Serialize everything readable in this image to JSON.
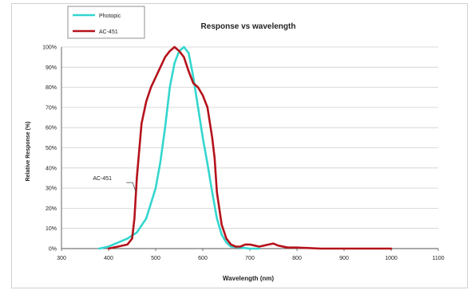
{
  "chart_data": {
    "type": "line",
    "title": "Response vs wavelength",
    "xlabel": "Wavelength (nm)",
    "ylabel": "Relative Response (%)",
    "xlim": [
      300,
      1100
    ],
    "ylim": [
      0,
      100
    ],
    "x_ticks": [
      300,
      400,
      500,
      600,
      700,
      800,
      900,
      1000,
      1100
    ],
    "y_ticks": [
      0,
      10,
      20,
      30,
      40,
      50,
      60,
      70,
      80,
      90,
      100
    ],
    "y_tick_suffix": "%",
    "grid": "horizontal",
    "legend_position": "top-left",
    "annotations": [
      {
        "text": "AC-451",
        "series": "AC-451",
        "x": 458,
        "y": 28
      }
    ],
    "series": [
      {
        "name": "Photopic",
        "color": "#33d6cf",
        "x": [
          380,
          400,
          420,
          440,
          460,
          480,
          500,
          510,
          520,
          530,
          540,
          550,
          560,
          570,
          580,
          590,
          600,
          610,
          620,
          630,
          640,
          650,
          660,
          680,
          700,
          720
        ],
        "y": [
          0,
          1,
          3,
          5,
          8,
          15,
          30,
          43,
          60,
          80,
          92,
          98,
          100,
          97,
          85,
          70,
          55,
          42,
          28,
          15,
          7,
          3,
          1,
          0.5,
          0,
          0
        ]
      },
      {
        "name": "AC-451",
        "color": "#b5121b",
        "x": [
          400,
          420,
          440,
          450,
          455,
          460,
          470,
          480,
          490,
          500,
          510,
          520,
          530,
          540,
          550,
          560,
          570,
          580,
          590,
          600,
          610,
          620,
          625,
          630,
          640,
          650,
          660,
          670,
          680,
          690,
          700,
          710,
          720,
          730,
          740,
          750,
          760,
          780,
          800,
          850,
          900,
          950,
          1000
        ],
        "y": [
          0,
          1,
          2,
          5,
          15,
          35,
          62,
          73,
          80,
          85,
          90,
          95,
          98,
          100,
          98,
          95,
          88,
          82,
          80,
          76,
          70,
          55,
          45,
          28,
          12,
          5,
          2,
          1,
          1,
          2,
          2,
          1.5,
          1,
          1.5,
          2,
          2.5,
          1.5,
          0.5,
          0.5,
          0,
          0,
          0,
          0
        ]
      }
    ]
  }
}
